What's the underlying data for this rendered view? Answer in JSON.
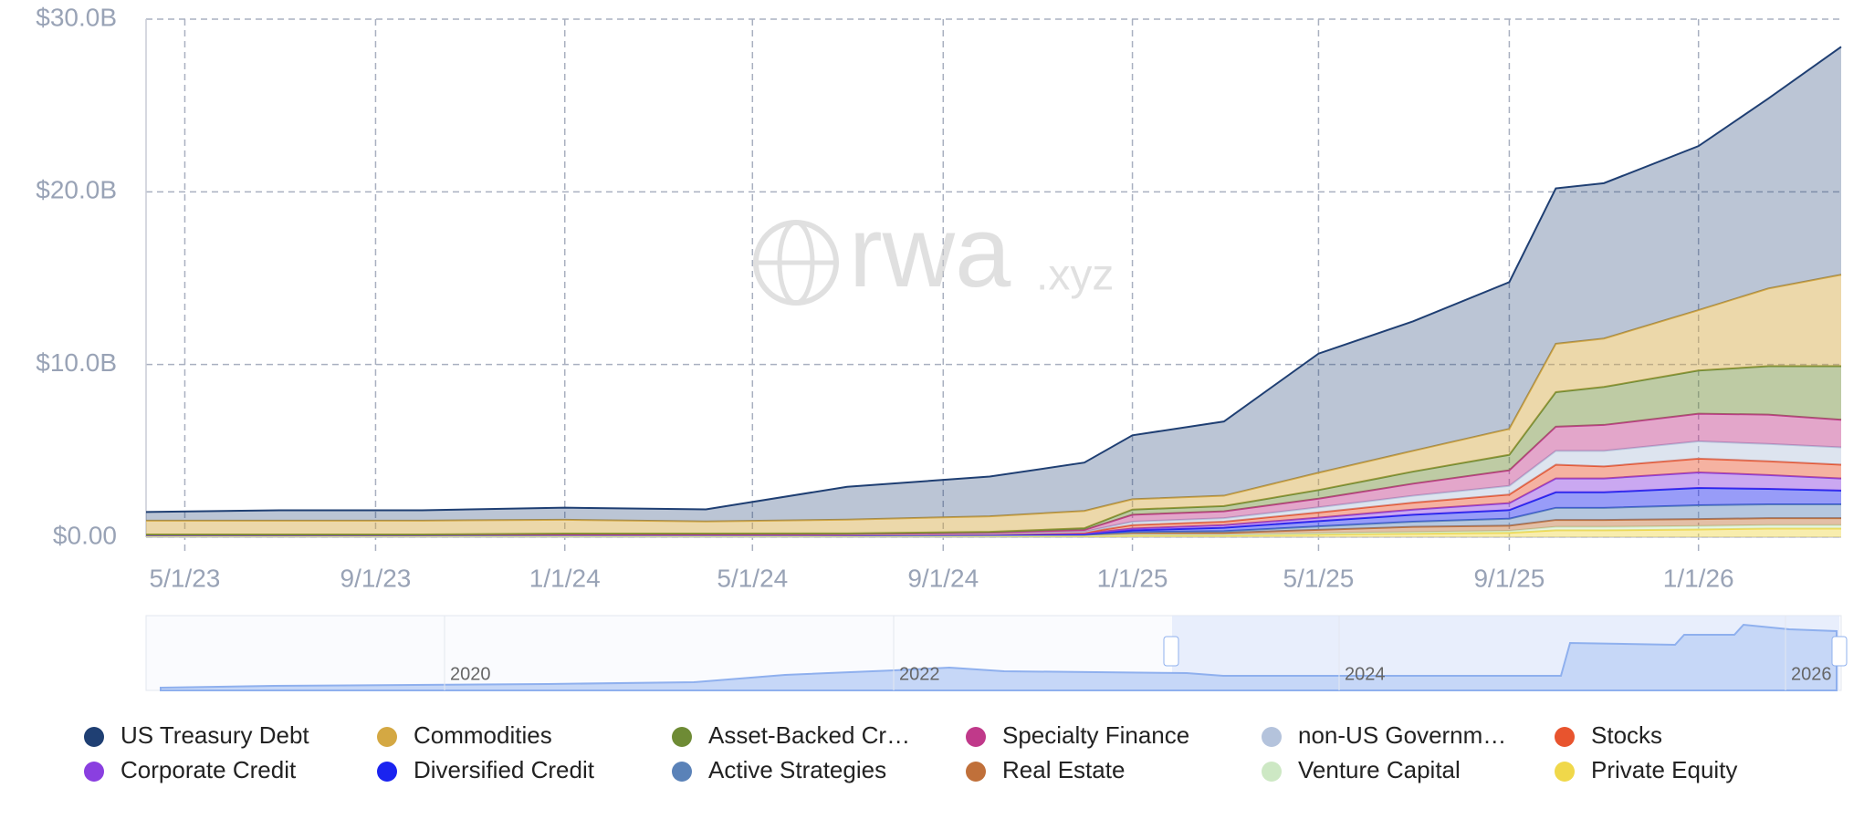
{
  "chart_data": {
    "type": "stacked_area",
    "watermark": [
      "rwa",
      ".xyz"
    ],
    "x": [
      "2023-04-06",
      "2023-07-01",
      "2023-10-01",
      "2024-01-01",
      "2024-04-01",
      "2024-07-01",
      "2024-10-01",
      "2024-12-01",
      "2025-01-01",
      "2025-03-01",
      "2025-05-01",
      "2025-07-01",
      "2025-09-01",
      "2025-10-01",
      "2025-11-01",
      "2026-01-01",
      "2026-02-15",
      "2026-04-03"
    ],
    "xlim": [
      "2023-04-06",
      "2026-04-03"
    ],
    "xticks": [
      {
        "value": "2023-05-01",
        "label": "5/1/23"
      },
      {
        "value": "2023-09-01",
        "label": "9/1/23"
      },
      {
        "value": "2024-01-01",
        "label": "1/1/24"
      },
      {
        "value": "2024-05-01",
        "label": "5/1/24"
      },
      {
        "value": "2024-09-01",
        "label": "9/1/24"
      },
      {
        "value": "2025-01-01",
        "label": "1/1/25"
      },
      {
        "value": "2025-05-01",
        "label": "5/1/25"
      },
      {
        "value": "2025-09-01",
        "label": "9/1/25"
      },
      {
        "value": "2026-01-01",
        "label": "1/1/26"
      }
    ],
    "ylim": [
      0,
      30
    ],
    "yticks": [
      {
        "value": 0,
        "label": "$0.00"
      },
      {
        "value": 10,
        "label": "$10.0B"
      },
      {
        "value": 20,
        "label": "$20.0B"
      },
      {
        "value": 30,
        "label": "$30.0B"
      }
    ],
    "grid": true,
    "navigator_labels": [
      "2020",
      "2022",
      "2024",
      "2026"
    ],
    "series": [
      {
        "name": "US Treasury Debt",
        "color": "#1f3f73",
        "values": [
          0.5,
          0.6,
          0.6,
          0.7,
          0.7,
          1.9,
          2.3,
          2.8,
          3.7,
          4.3,
          6.9,
          7.5,
          8.5,
          9.0,
          9.0,
          9.5,
          11.0,
          13.2
        ]
      },
      {
        "name": "Commodities",
        "color": "#d4a843",
        "values": [
          0.8,
          0.8,
          0.8,
          0.8,
          0.7,
          0.8,
          0.9,
          1.0,
          0.6,
          0.6,
          1.0,
          1.2,
          1.5,
          2.8,
          2.8,
          3.5,
          4.5,
          5.3
        ]
      },
      {
        "name": "Asset-Backed Cr…",
        "color": "#6e8b35",
        "values": [
          0.02,
          0.02,
          0.02,
          0.05,
          0.05,
          0.05,
          0.05,
          0.1,
          0.3,
          0.3,
          0.5,
          0.7,
          0.9,
          2.0,
          2.2,
          2.5,
          2.8,
          3.1
        ]
      },
      {
        "name": "Specialty Finance",
        "color": "#c0398a",
        "values": [
          0.01,
          0.01,
          0.01,
          0.02,
          0.02,
          0.02,
          0.05,
          0.1,
          0.4,
          0.4,
          0.5,
          0.7,
          0.9,
          1.4,
          1.5,
          1.6,
          1.7,
          1.6
        ]
      },
      {
        "name": "non-US Governm…",
        "color": "#b4c3dc",
        "values": [
          0,
          0,
          0,
          0,
          0,
          0,
          0.02,
          0.05,
          0.2,
          0.2,
          0.3,
          0.4,
          0.5,
          0.8,
          0.9,
          1.0,
          1.0,
          1.0
        ]
      },
      {
        "name": "Stocks",
        "color": "#e8542e",
        "values": [
          0,
          0,
          0,
          0,
          0,
          0.01,
          0.02,
          0.05,
          0.2,
          0.2,
          0.3,
          0.4,
          0.5,
          0.8,
          0.7,
          0.8,
          0.8,
          0.8
        ]
      },
      {
        "name": "Corporate Credit",
        "color": "#8a3fe0",
        "values": [
          0.01,
          0.01,
          0.01,
          0.02,
          0.02,
          0.02,
          0.03,
          0.05,
          0.1,
          0.15,
          0.2,
          0.3,
          0.4,
          0.8,
          0.8,
          0.9,
          0.8,
          0.7
        ]
      },
      {
        "name": "Diversified Credit",
        "color": "#1a23f0",
        "values": [
          0,
          0,
          0,
          0,
          0,
          0,
          0.01,
          0.02,
          0.1,
          0.2,
          0.3,
          0.4,
          0.5,
          0.9,
          0.9,
          1.0,
          0.9,
          0.8
        ]
      },
      {
        "name": "Active Strategies",
        "color": "#5a82b8",
        "values": [
          0,
          0,
          0,
          0,
          0,
          0,
          0,
          0.01,
          0.05,
          0.1,
          0.2,
          0.3,
          0.4,
          0.7,
          0.7,
          0.8,
          0.8,
          0.8
        ]
      },
      {
        "name": "Real Estate",
        "color": "#c0703a",
        "values": [
          0.05,
          0.05,
          0.05,
          0.05,
          0.05,
          0.05,
          0.05,
          0.05,
          0.1,
          0.1,
          0.2,
          0.3,
          0.3,
          0.4,
          0.4,
          0.4,
          0.4,
          0.4
        ]
      },
      {
        "name": "Venture Capital",
        "color": "#cde8c4",
        "values": [
          0.02,
          0.02,
          0.02,
          0.02,
          0.02,
          0.02,
          0.03,
          0.03,
          0.05,
          0.05,
          0.08,
          0.1,
          0.12,
          0.2,
          0.2,
          0.2,
          0.2,
          0.2
        ]
      },
      {
        "name": "Private Equity",
        "color": "#f0d84a",
        "values": [
          0.05,
          0.05,
          0.05,
          0.05,
          0.05,
          0.05,
          0.05,
          0.06,
          0.1,
          0.1,
          0.15,
          0.2,
          0.25,
          0.4,
          0.4,
          0.45,
          0.5,
          0.5
        ]
      }
    ]
  }
}
